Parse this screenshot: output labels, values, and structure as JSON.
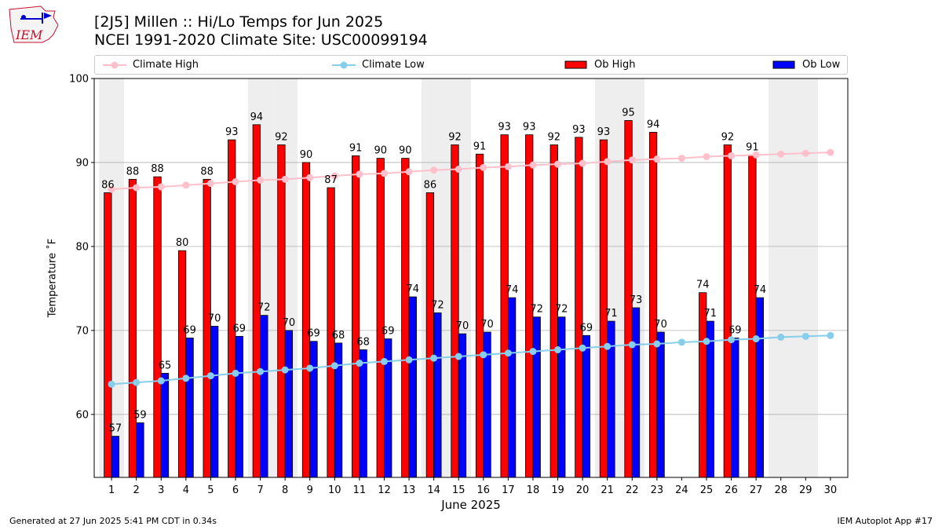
{
  "header": {
    "title_line1": "[2J5] Millen :: Hi/Lo Temps for Jun 2025",
    "title_line2": "NCEI 1991-2020 Climate Site: USC00099194",
    "logo_text": "IEM"
  },
  "legend": {
    "climate_high": "Climate High",
    "climate_low": "Climate Low",
    "ob_high": "Ob High",
    "ob_low": "Ob Low"
  },
  "footer": {
    "left": "Generated at 27 Jun 2025 5:41 PM CDT in 0.34s",
    "right": "IEM Autoplot App #17"
  },
  "colors": {
    "ob_high": "#ff0000",
    "ob_low": "#0000ff",
    "climate_high": "#ffc0cb",
    "climate_low": "#87ceeb",
    "weekend_shade": "#eeeeee",
    "grid": "#b0b0b0"
  },
  "chart_data": {
    "type": "bar",
    "xlabel": "June 2025",
    "ylabel": "Temperature ˚F",
    "ylim": [
      52.5,
      100
    ],
    "yticks": [
      60,
      70,
      80,
      90,
      100
    ],
    "grid": "horizontal",
    "legend_position": "top",
    "weekend_days": [
      1,
      7,
      8,
      14,
      15,
      21,
      22,
      28,
      29
    ],
    "categories": [
      1,
      2,
      3,
      4,
      5,
      6,
      7,
      8,
      9,
      10,
      11,
      12,
      13,
      14,
      15,
      16,
      17,
      18,
      19,
      20,
      21,
      22,
      23,
      24,
      25,
      26,
      27,
      28,
      29,
      30
    ],
    "series": [
      {
        "name": "Ob High",
        "kind": "bar",
        "values": [
          86.4,
          88.0,
          88.3,
          79.5,
          88.0,
          92.7,
          94.5,
          92.1,
          90.0,
          87.0,
          90.8,
          90.5,
          90.5,
          86.4,
          92.1,
          91.0,
          93.3,
          93.3,
          92.1,
          93.0,
          92.7,
          95.0,
          93.6,
          null,
          74.5,
          92.1,
          90.9,
          null,
          null,
          null
        ],
        "labels": [
          "86",
          "88",
          "88",
          "80",
          "88",
          "93",
          "94",
          "92",
          "90",
          "87",
          "91",
          "90",
          "90",
          "86",
          "92",
          "91",
          "93",
          "93",
          "92",
          "93",
          "93",
          "95",
          "94",
          "",
          "74",
          "92",
          "91",
          "",
          "",
          ""
        ]
      },
      {
        "name": "Ob Low",
        "kind": "bar",
        "values": [
          57.4,
          59.0,
          64.9,
          69.1,
          70.5,
          69.3,
          71.8,
          70.0,
          68.7,
          68.5,
          67.7,
          69.0,
          74.0,
          72.1,
          69.6,
          69.8,
          73.9,
          71.6,
          71.6,
          69.4,
          71.1,
          72.7,
          69.8,
          null,
          71.1,
          69.1,
          73.9,
          null,
          null,
          null
        ],
        "labels": [
          "57",
          "59",
          "65",
          "69",
          "70",
          "69",
          "72",
          "70",
          "69",
          "68",
          "68",
          "69",
          "74",
          "72",
          "70",
          "70",
          "74",
          "72",
          "72",
          "69",
          "71",
          "73",
          "70",
          "",
          "71",
          "69",
          "74",
          "",
          "",
          ""
        ]
      },
      {
        "name": "Climate High",
        "kind": "line",
        "values": [
          86.8,
          87.0,
          87.1,
          87.3,
          87.5,
          87.7,
          87.9,
          88.0,
          88.2,
          88.4,
          88.6,
          88.7,
          88.9,
          89.1,
          89.2,
          89.4,
          89.5,
          89.7,
          89.8,
          89.9,
          90.1,
          90.3,
          90.4,
          90.5,
          90.7,
          90.8,
          90.9,
          91.0,
          91.1,
          91.2
        ]
      },
      {
        "name": "Climate Low",
        "kind": "line",
        "values": [
          63.6,
          63.8,
          64.0,
          64.3,
          64.6,
          64.9,
          65.1,
          65.3,
          65.5,
          65.8,
          66.1,
          66.3,
          66.5,
          66.7,
          66.9,
          67.1,
          67.3,
          67.5,
          67.7,
          67.9,
          68.1,
          68.3,
          68.4,
          68.6,
          68.7,
          68.9,
          69.0,
          69.2,
          69.3,
          69.4
        ]
      }
    ]
  }
}
